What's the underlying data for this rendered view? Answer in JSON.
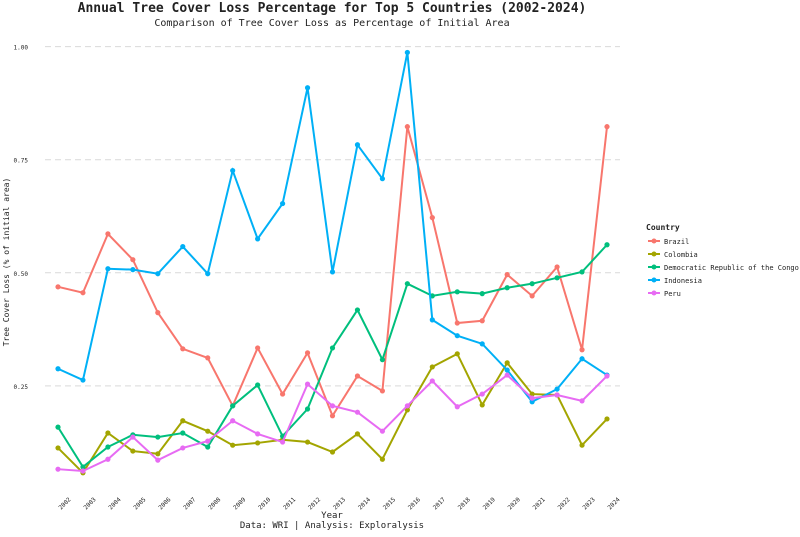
{
  "chart_data": {
    "type": "line",
    "title": "Annual Tree Cover Loss Percentage for Top 5 Countries (2002-2024)",
    "subtitle": "Comparison of Tree Cover Loss as Percentage of Initial Area",
    "x_label": "Year",
    "y_label": "Tree Cover Loss (% of initial area)",
    "caption": "Data: WRI | Analysis: Exploralysis",
    "legend_title": "Country",
    "legend_position": "right",
    "grid": true,
    "categories": [
      "2002",
      "2003",
      "2004",
      "2005",
      "2006",
      "2007",
      "2008",
      "2009",
      "2010",
      "2011",
      "2012",
      "2013",
      "2014",
      "2015",
      "2016",
      "2017",
      "2018",
      "2019",
      "2020",
      "2021",
      "2022",
      "2023",
      "2024"
    ],
    "ylim": [
      0.02,
      1.03
    ],
    "yticks": [
      {
        "value": 0.25,
        "label": "0.25"
      },
      {
        "value": 0.5,
        "label": "0.50"
      },
      {
        "value": 0.75,
        "label": "0.75"
      },
      {
        "value": 1,
        "label": "1.00"
      }
    ],
    "series": [
      {
        "name": "Brazil",
        "color": "#F8766D",
        "values": [
          0.469,
          0.456,
          0.586,
          0.529,
          0.412,
          0.332,
          0.312,
          0.206,
          0.334,
          0.232,
          0.323,
          0.184,
          0.272,
          0.239,
          0.823,
          0.622,
          0.389,
          0.394,
          0.496,
          0.449,
          0.513,
          0.33,
          0.823
        ]
      },
      {
        "name": "Colombia",
        "color": "#A3A500",
        "values": [
          0.113,
          0.058,
          0.146,
          0.106,
          0.1,
          0.173,
          0.15,
          0.119,
          0.124,
          0.131,
          0.126,
          0.104,
          0.144,
          0.088,
          0.197,
          0.292,
          0.321,
          0.208,
          0.301,
          0.232,
          0.23,
          0.119,
          0.177
        ]
      },
      {
        "name": "Democratic Republic of the Congo",
        "color": "#00BF7D",
        "values": [
          0.159,
          0.071,
          0.115,
          0.142,
          0.137,
          0.146,
          0.115,
          0.206,
          0.252,
          0.139,
          0.199,
          0.334,
          0.418,
          0.308,
          0.476,
          0.449,
          0.458,
          0.454,
          0.467,
          0.476,
          0.489,
          0.502,
          0.562
        ]
      },
      {
        "name": "Indonesia",
        "color": "#00B0F6",
        "values": [
          0.288,
          0.263,
          0.509,
          0.507,
          0.498,
          0.558,
          0.498,
          0.726,
          0.575,
          0.653,
          0.909,
          0.502,
          0.783,
          0.708,
          0.987,
          0.396,
          0.361,
          0.343,
          0.285,
          0.215,
          0.243,
          0.31,
          0.274
        ]
      },
      {
        "name": "Peru",
        "color": "#E76BF3",
        "values": [
          0.066,
          0.062,
          0.088,
          0.137,
          0.086,
          0.113,
          0.128,
          0.173,
          0.144,
          0.126,
          0.254,
          0.206,
          0.192,
          0.15,
          0.206,
          0.261,
          0.204,
          0.232,
          0.274,
          0.223,
          0.23,
          0.217,
          0.272
        ]
      }
    ]
  }
}
